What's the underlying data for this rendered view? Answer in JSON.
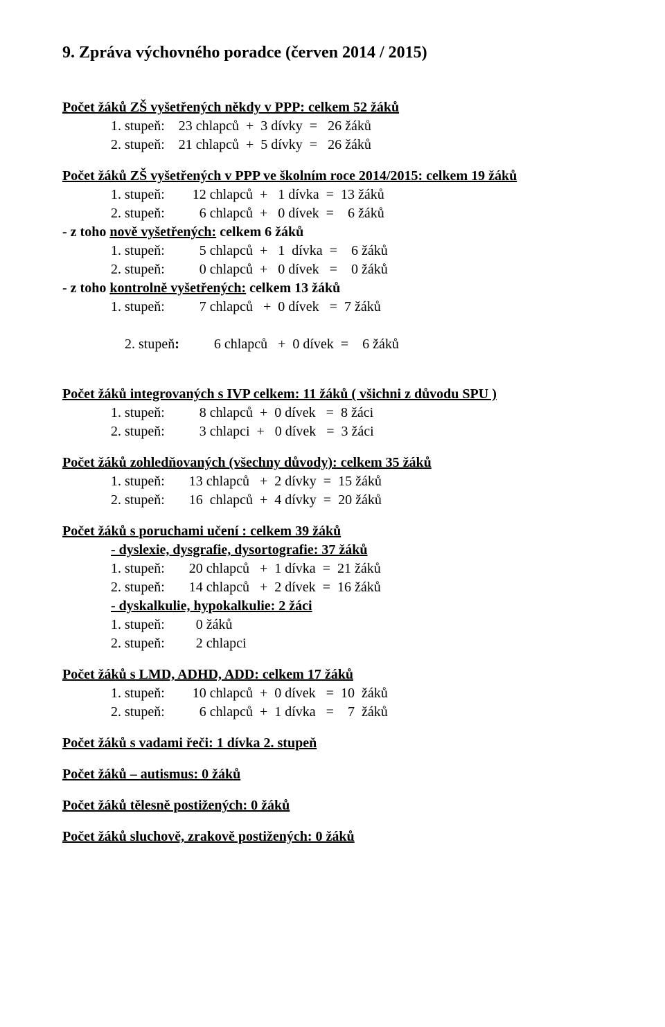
{
  "title": "9. Zpráva výchovného poradce  (červen  2014 / 2015)",
  "s1": {
    "heading": "Počet žáků ZŠ vyšetřených někdy v PPP:   celkem  52 žáků",
    "l1": "1. stupeň:    23 chlapců  +  3 dívky  =   26 žáků",
    "l2": "2. stupeň:    21 chlapců  +  5 dívky  =   26 žáků"
  },
  "s2": {
    "heading": "Počet žáků ZŠ vyšetřených v PPP ve školním roce 2014/2015:   celkem  19  žáků",
    "l1": "1. stupeň:        12 chlapců  +   1 dívka  =  13 žáků",
    "l2": "2. stupeň:          6 chlapců  +   0 dívek  =    6 žáků",
    "sub1_heading_prefix": "- z toho ",
    "sub1_heading_under": "nově vyšetřených:",
    "sub1_heading_suffix": " celkem  6 žáků",
    "sub1_l1": "1. stupeň:          5 chlapců  +   1  dívka  =    6 žáků",
    "sub1_l2": "2. stupeň:          0 chlapců  +   0 dívek   =    0 žáků",
    "sub2_heading_prefix": "- z toho ",
    "sub2_heading_under": "kontrolně vyšetřených:",
    "sub2_heading_suffix": " celkem   13 žáků",
    "sub2_l1": "1. stupeň:          7 chlapců   +  0 dívek   =  7 žáků",
    "sub2_l2": "2. stupeň:          6 chlapců   +  0 dívek  =    6 žáků"
  },
  "s3": {
    "heading": "Počet žáků integrovaných s IVP celkem: 11 žáků  ( všichni z důvodu SPU )",
    "l1": "1. stupeň:          8 chlapců  +  0 dívek   =  8 žáci",
    "l2": "2. stupeň:          3 chlapci  +   0 dívek   =  3 žáci"
  },
  "s4": {
    "heading": "Počet žáků zohledňovaných (všechny důvody):  celkem  35 žáků",
    "l1": "1. stupeň:       13 chlapců   +  2 dívky  =  15 žáků",
    "l2": "2. stupeň:       16  chlapců  +  4 dívky  =  20 žáků"
  },
  "s5": {
    "heading": "Počet žáků s poruchami učení :  celkem  39 žáků",
    "sub1_heading": "- dyslexie, dysgrafie, dysortografie: 37 žáků",
    "sub1_l1": "1. stupeň:       20 chlapců   +  1 dívka  =  21 žáků",
    "sub1_l2": "2. stupeň:       14 chlapců   +  2 dívek  =  16 žáků",
    "sub2_heading": "- dyskalkulie, hypokalkulie: 2 žáci",
    "sub2_l1": "1. stupeň:         0 žáků",
    "sub2_l2": "2. stupeň:         2 chlapci"
  },
  "s6": {
    "heading": "Počet žáků s LMD, ADHD, ADD: celkem  17 žáků",
    "l1": "1. stupeň:        10 chlapců  +  0 dívek   =  10  žáků",
    "l2": "2. stupeň:          6 chlapců  +  1 dívka   =    7  žáků"
  },
  "s7": {
    "heading": "Počet žáků s vadami řeči:  1 dívka 2. stupeň"
  },
  "s8": {
    "heading": "Počet žáků – autismus: 0 žáků"
  },
  "s9": {
    "heading": "Počet žáků tělesně postižených:  0 žáků"
  },
  "s10": {
    "heading": "Počet žáků sluchově, zrakově postižených:   0  žáků"
  }
}
